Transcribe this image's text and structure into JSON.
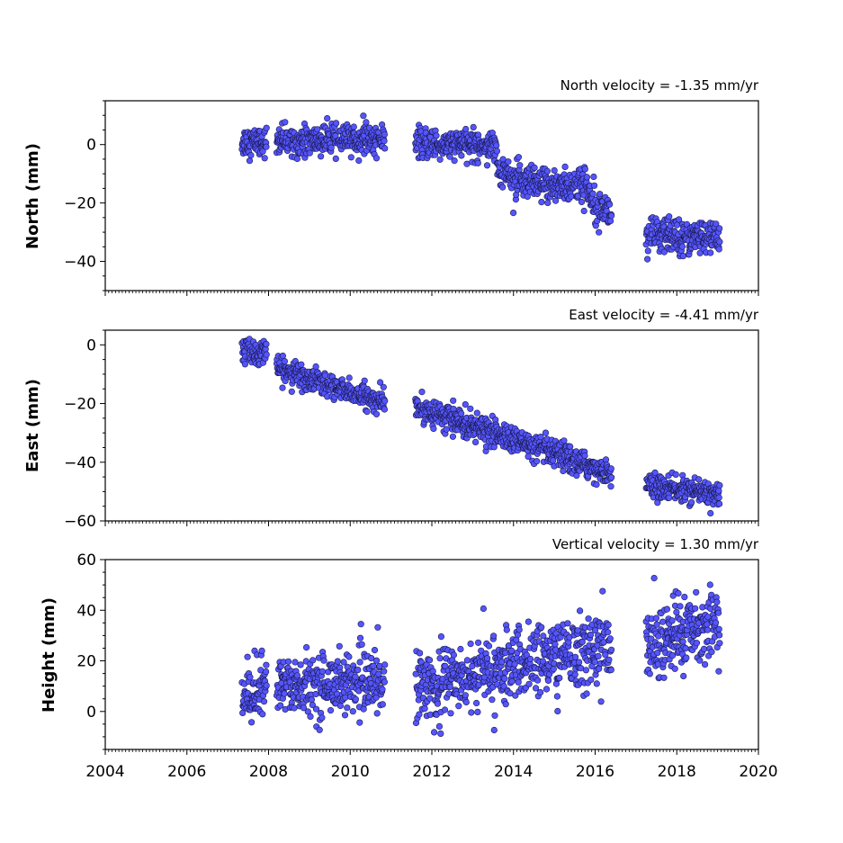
{
  "chart_data": [
    {
      "type": "scatter",
      "title": "North velocity = -1.35 mm/yr",
      "xlabel": "",
      "ylabel": "North (mm)",
      "xlim": [
        2004,
        2020
      ],
      "ylim": [
        -50,
        15
      ],
      "x_ticks": [
        "2004",
        "2006",
        "2008",
        "2010",
        "2012",
        "2014",
        "2016",
        "2018",
        "2020"
      ],
      "y_ticks": [
        {
          "value": 0,
          "label": "0"
        },
        {
          "value": -20,
          "label": "−20"
        },
        {
          "value": -40,
          "label": "−40"
        }
      ],
      "color": "#5555ff",
      "segments": [
        {
          "x": [
            2007.35,
            2007.95
          ],
          "y": [
            1,
            1
          ],
          "noise": 2.5
        },
        {
          "x": [
            2008.2,
            2010.85
          ],
          "y": [
            1,
            2
          ],
          "noise": 2.5
        },
        {
          "x": [
            2011.6,
            2013.6
          ],
          "y": [
            0,
            0
          ],
          "noise": 2.5
        },
        {
          "x": [
            2013.6,
            2014.2
          ],
          "y": [
            -8,
            -13
          ],
          "noise": 3
        },
        {
          "x": [
            2014.2,
            2015.8
          ],
          "y": [
            -14,
            -14
          ],
          "noise": 3
        },
        {
          "x": [
            2015.8,
            2016.4
          ],
          "y": [
            -16,
            -24
          ],
          "noise": 3
        },
        {
          "x": [
            2017.25,
            2019.05
          ],
          "y": [
            -31,
            -32
          ],
          "noise": 3
        }
      ]
    },
    {
      "type": "scatter",
      "title": "East velocity = -4.41 mm/yr",
      "xlabel": "",
      "ylabel": "East (mm)",
      "xlim": [
        2004,
        2020
      ],
      "ylim": [
        -60,
        5
      ],
      "x_ticks": [
        "2004",
        "2006",
        "2008",
        "2010",
        "2012",
        "2014",
        "2016",
        "2018",
        "2020"
      ],
      "y_ticks": [
        {
          "value": 0,
          "label": "0"
        },
        {
          "value": -20,
          "label": "−20"
        },
        {
          "value": -40,
          "label": "−40"
        },
        {
          "value": -60,
          "label": "−60"
        }
      ],
      "color": "#5555ff",
      "segments": [
        {
          "x": [
            2007.35,
            2007.95
          ],
          "y": [
            -2,
            -3
          ],
          "noise": 2
        },
        {
          "x": [
            2008.2,
            2010.85
          ],
          "y": [
            -8,
            -20
          ],
          "noise": 2
        },
        {
          "x": [
            2011.6,
            2016.4
          ],
          "y": [
            -21,
            -44
          ],
          "noise": 2.2
        },
        {
          "x": [
            2017.25,
            2019.05
          ],
          "y": [
            -48,
            -51
          ],
          "noise": 2
        }
      ]
    },
    {
      "type": "scatter",
      "title": "Vertical velocity = 1.30 mm/yr",
      "xlabel": "",
      "ylabel": "Height (mm)",
      "xlim": [
        2004,
        2020
      ],
      "ylim": [
        -15,
        60
      ],
      "x_ticks": [
        "2004",
        "2006",
        "2008",
        "2010",
        "2012",
        "2014",
        "2016",
        "2018",
        "2020"
      ],
      "y_ticks": [
        {
          "value": 0,
          "label": "0"
        },
        {
          "value": 20,
          "label": "20"
        },
        {
          "value": 40,
          "label": "40"
        },
        {
          "value": 60,
          "label": "60"
        }
      ],
      "color": "#5555ff",
      "segments": [
        {
          "x": [
            2007.35,
            2007.95
          ],
          "y": [
            5,
            10
          ],
          "noise": 6
        },
        {
          "x": [
            2008.2,
            2010.85
          ],
          "y": [
            10,
            12
          ],
          "noise": 6
        },
        {
          "x": [
            2011.6,
            2016.4
          ],
          "y": [
            10,
            26
          ],
          "noise": 7
        },
        {
          "x": [
            2017.25,
            2019.05
          ],
          "y": [
            25,
            36
          ],
          "noise": 7
        }
      ]
    }
  ]
}
